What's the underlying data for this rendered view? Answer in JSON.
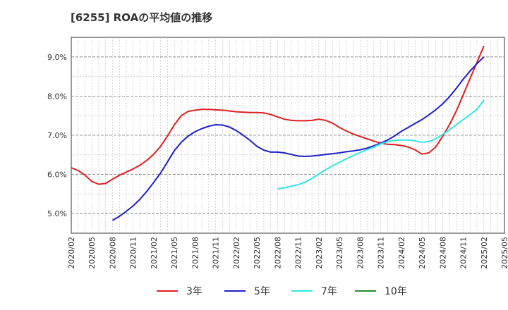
{
  "chart_data": {
    "type": "line",
    "title": "[6255]  ROAの平均値の推移",
    "xlabel": "",
    "ylabel": "",
    "ylim": [
      4.5,
      9.5
    ],
    "y_ticks": [
      "5.0%",
      "6.0%",
      "7.0%",
      "8.0%",
      "9.0%"
    ],
    "x_ticks": [
      "2020/02",
      "2020/05",
      "2020/08",
      "2020/11",
      "2021/02",
      "2021/05",
      "2021/08",
      "2021/11",
      "2022/02",
      "2022/05",
      "2022/08",
      "2022/11",
      "2023/02",
      "2023/05",
      "2023/08",
      "2023/11",
      "2024/02",
      "2024/05",
      "2024/08",
      "2024/11",
      "2025/02",
      "2025/05"
    ],
    "grid": true,
    "legend_position": "bottom",
    "series": [
      {
        "name": "3年",
        "color": "#e01f1f",
        "points": [
          [
            "2020/02",
            6.17
          ],
          [
            "2020/03",
            6.1
          ],
          [
            "2020/04",
            5.98
          ],
          [
            "2020/05",
            5.82
          ],
          [
            "2020/06",
            5.75
          ],
          [
            "2020/07",
            5.77
          ],
          [
            "2020/08",
            5.88
          ],
          [
            "2020/09",
            5.98
          ],
          [
            "2020/10",
            6.06
          ],
          [
            "2020/11",
            6.14
          ],
          [
            "2020/12",
            6.24
          ],
          [
            "2021/01",
            6.36
          ],
          [
            "2021/02",
            6.52
          ],
          [
            "2021/03",
            6.72
          ],
          [
            "2021/04",
            6.98
          ],
          [
            "2021/05",
            7.27
          ],
          [
            "2021/06",
            7.5
          ],
          [
            "2021/07",
            7.61
          ],
          [
            "2021/08",
            7.64
          ],
          [
            "2021/09",
            7.66
          ],
          [
            "2021/10",
            7.66
          ],
          [
            "2021/11",
            7.65
          ],
          [
            "2021/12",
            7.64
          ],
          [
            "2022/01",
            7.62
          ],
          [
            "2022/02",
            7.6
          ],
          [
            "2022/03",
            7.59
          ],
          [
            "2022/04",
            7.58
          ],
          [
            "2022/05",
            7.58
          ],
          [
            "2022/06",
            7.57
          ],
          [
            "2022/07",
            7.53
          ],
          [
            "2022/08",
            7.47
          ],
          [
            "2022/09",
            7.41
          ],
          [
            "2022/10",
            7.38
          ],
          [
            "2022/11",
            7.37
          ],
          [
            "2022/12",
            7.37
          ],
          [
            "2023/01",
            7.38
          ],
          [
            "2023/02",
            7.41
          ],
          [
            "2023/03",
            7.38
          ],
          [
            "2023/04",
            7.31
          ],
          [
            "2023/05",
            7.2
          ],
          [
            "2023/06",
            7.11
          ],
          [
            "2023/07",
            7.03
          ],
          [
            "2023/08",
            6.97
          ],
          [
            "2023/09",
            6.91
          ],
          [
            "2023/10",
            6.85
          ],
          [
            "2023/11",
            6.8
          ],
          [
            "2023/12",
            6.77
          ],
          [
            "2024/01",
            6.76
          ],
          [
            "2024/02",
            6.74
          ],
          [
            "2024/03",
            6.7
          ],
          [
            "2024/04",
            6.63
          ],
          [
            "2024/05",
            6.52
          ],
          [
            "2024/06",
            6.55
          ],
          [
            "2024/07",
            6.7
          ],
          [
            "2024/08",
            6.97
          ],
          [
            "2024/09",
            7.27
          ],
          [
            "2024/10",
            7.62
          ],
          [
            "2024/11",
            8.03
          ],
          [
            "2024/12",
            8.45
          ],
          [
            "2025/01",
            8.86
          ],
          [
            "2025/02",
            9.28
          ]
        ]
      },
      {
        "name": "5年",
        "color": "#1f1fc8",
        "points": [
          [
            "2020/08",
            4.83
          ],
          [
            "2020/09",
            4.93
          ],
          [
            "2020/10",
            5.06
          ],
          [
            "2020/11",
            5.2
          ],
          [
            "2020/12",
            5.37
          ],
          [
            "2021/01",
            5.57
          ],
          [
            "2021/02",
            5.8
          ],
          [
            "2021/03",
            6.04
          ],
          [
            "2021/04",
            6.32
          ],
          [
            "2021/05",
            6.61
          ],
          [
            "2021/06",
            6.82
          ],
          [
            "2021/07",
            6.98
          ],
          [
            "2021/08",
            7.09
          ],
          [
            "2021/09",
            7.17
          ],
          [
            "2021/10",
            7.23
          ],
          [
            "2021/11",
            7.27
          ],
          [
            "2021/12",
            7.26
          ],
          [
            "2022/01",
            7.21
          ],
          [
            "2022/02",
            7.12
          ],
          [
            "2022/03",
            7.0
          ],
          [
            "2022/04",
            6.87
          ],
          [
            "2022/05",
            6.72
          ],
          [
            "2022/06",
            6.62
          ],
          [
            "2022/07",
            6.57
          ],
          [
            "2022/08",
            6.57
          ],
          [
            "2022/09",
            6.55
          ],
          [
            "2022/10",
            6.51
          ],
          [
            "2022/11",
            6.47
          ],
          [
            "2022/12",
            6.46
          ],
          [
            "2023/01",
            6.47
          ],
          [
            "2023/02",
            6.49
          ],
          [
            "2023/03",
            6.51
          ],
          [
            "2023/04",
            6.53
          ],
          [
            "2023/05",
            6.55
          ],
          [
            "2023/06",
            6.58
          ],
          [
            "2023/07",
            6.6
          ],
          [
            "2023/08",
            6.63
          ],
          [
            "2023/09",
            6.67
          ],
          [
            "2023/10",
            6.73
          ],
          [
            "2023/11",
            6.8
          ],
          [
            "2023/12",
            6.88
          ],
          [
            "2024/01",
            6.98
          ],
          [
            "2024/02",
            7.1
          ],
          [
            "2024/03",
            7.2
          ],
          [
            "2024/04",
            7.3
          ],
          [
            "2024/05",
            7.4
          ],
          [
            "2024/06",
            7.52
          ],
          [
            "2024/07",
            7.65
          ],
          [
            "2024/08",
            7.8
          ],
          [
            "2024/09",
            7.98
          ],
          [
            "2024/10",
            8.2
          ],
          [
            "2024/11",
            8.43
          ],
          [
            "2024/12",
            8.64
          ],
          [
            "2025/01",
            8.83
          ],
          [
            "2025/02",
            9.0
          ]
        ]
      },
      {
        "name": "7年",
        "color": "#33e5e5",
        "points": [
          [
            "2022/08",
            5.63
          ],
          [
            "2022/09",
            5.66
          ],
          [
            "2022/10",
            5.7
          ],
          [
            "2022/11",
            5.74
          ],
          [
            "2022/12",
            5.8
          ],
          [
            "2023/01",
            5.9
          ],
          [
            "2023/02",
            6.01
          ],
          [
            "2023/03",
            6.12
          ],
          [
            "2023/04",
            6.22
          ],
          [
            "2023/05",
            6.31
          ],
          [
            "2023/06",
            6.4
          ],
          [
            "2023/07",
            6.48
          ],
          [
            "2023/08",
            6.56
          ],
          [
            "2023/09",
            6.63
          ],
          [
            "2023/10",
            6.7
          ],
          [
            "2023/11",
            6.78
          ],
          [
            "2023/12",
            6.84
          ],
          [
            "2024/01",
            6.87
          ],
          [
            "2024/02",
            6.88
          ],
          [
            "2024/03",
            6.88
          ],
          [
            "2024/04",
            6.86
          ],
          [
            "2024/05",
            6.82
          ],
          [
            "2024/06",
            6.84
          ],
          [
            "2024/07",
            6.91
          ],
          [
            "2024/08",
            7.02
          ],
          [
            "2024/09",
            7.14
          ],
          [
            "2024/10",
            7.27
          ],
          [
            "2024/11",
            7.4
          ],
          [
            "2024/12",
            7.53
          ],
          [
            "2025/01",
            7.66
          ],
          [
            "2025/02",
            7.9
          ]
        ]
      },
      {
        "name": "10年",
        "color": "#2a8a2a",
        "points": []
      }
    ]
  }
}
